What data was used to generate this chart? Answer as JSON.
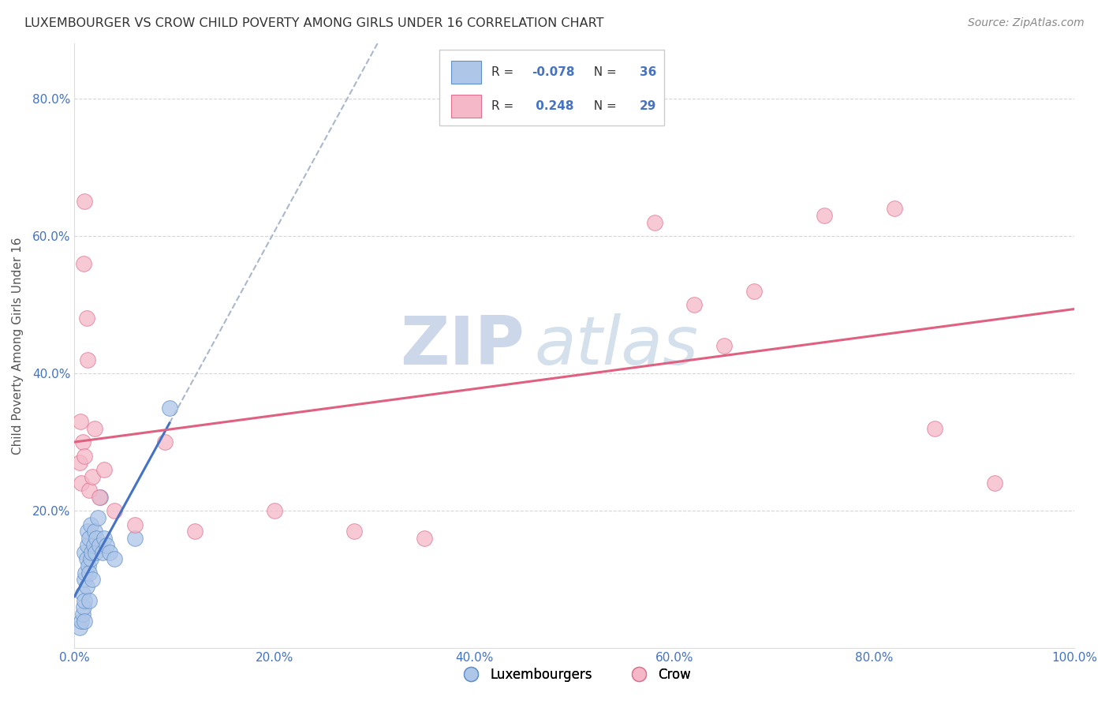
{
  "title": "LUXEMBOURGER VS CROW CHILD POVERTY AMONG GIRLS UNDER 16 CORRELATION CHART",
  "source": "Source: ZipAtlas.com",
  "ylabel": "Child Poverty Among Girls Under 16",
  "xlim": [
    0.0,
    1.0
  ],
  "ylim": [
    0.0,
    0.88
  ],
  "xtick_labels": [
    "0.0%",
    "20.0%",
    "40.0%",
    "60.0%",
    "80.0%",
    "100.0%"
  ],
  "xtick_vals": [
    0.0,
    0.2,
    0.4,
    0.6,
    0.8,
    1.0
  ],
  "ytick_labels": [
    "20.0%",
    "40.0%",
    "60.0%",
    "80.0%"
  ],
  "ytick_vals": [
    0.2,
    0.4,
    0.6,
    0.8
  ],
  "blue_R": -0.078,
  "blue_N": 36,
  "pink_R": 0.248,
  "pink_N": 29,
  "blue_color": "#aec6e8",
  "pink_color": "#f5b8c8",
  "blue_edge_color": "#6090c8",
  "pink_edge_color": "#e07090",
  "blue_line_color": "#4472c4",
  "pink_line_color": "#e06080",
  "dashed_line_color": "#aab8cc",
  "watermark_zip": "ZIP",
  "watermark_atlas": "atlas",
  "blue_x": [
    0.005,
    0.007,
    0.008,
    0.008,
    0.009,
    0.01,
    0.01,
    0.01,
    0.01,
    0.011,
    0.012,
    0.012,
    0.013,
    0.013,
    0.014,
    0.015,
    0.015,
    0.015,
    0.016,
    0.016,
    0.017,
    0.018,
    0.019,
    0.02,
    0.021,
    0.022,
    0.023,
    0.025,
    0.026,
    0.028,
    0.03,
    0.032,
    0.035,
    0.04,
    0.06,
    0.095
  ],
  "blue_y": [
    0.03,
    0.04,
    0.05,
    0.08,
    0.06,
    0.04,
    0.07,
    0.1,
    0.14,
    0.11,
    0.09,
    0.13,
    0.15,
    0.17,
    0.12,
    0.07,
    0.11,
    0.16,
    0.13,
    0.18,
    0.14,
    0.1,
    0.15,
    0.17,
    0.14,
    0.16,
    0.19,
    0.15,
    0.22,
    0.14,
    0.16,
    0.15,
    0.14,
    0.13,
    0.16,
    0.35
  ],
  "pink_x": [
    0.005,
    0.006,
    0.007,
    0.008,
    0.009,
    0.01,
    0.01,
    0.012,
    0.013,
    0.015,
    0.018,
    0.02,
    0.025,
    0.03,
    0.04,
    0.06,
    0.09,
    0.12,
    0.2,
    0.28,
    0.35,
    0.58,
    0.62,
    0.65,
    0.68,
    0.75,
    0.82,
    0.86,
    0.92
  ],
  "pink_y": [
    0.27,
    0.33,
    0.24,
    0.3,
    0.56,
    0.28,
    0.65,
    0.48,
    0.42,
    0.23,
    0.25,
    0.32,
    0.22,
    0.26,
    0.2,
    0.18,
    0.3,
    0.17,
    0.2,
    0.17,
    0.16,
    0.62,
    0.5,
    0.44,
    0.52,
    0.63,
    0.64,
    0.32,
    0.24
  ]
}
